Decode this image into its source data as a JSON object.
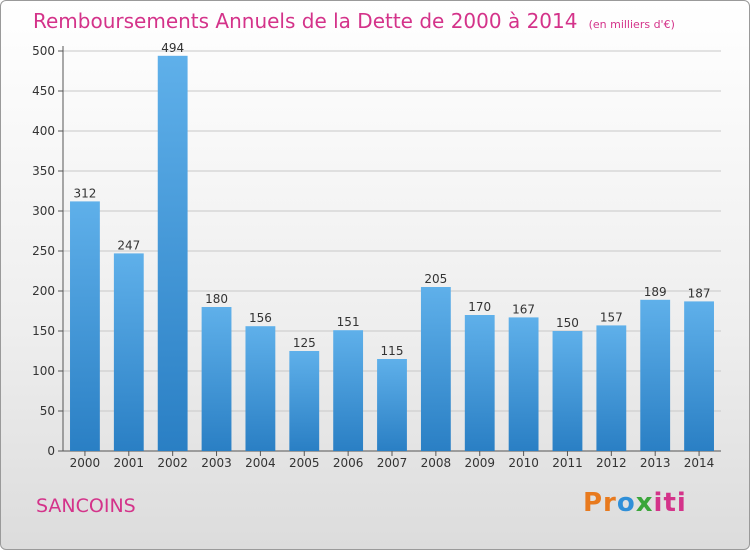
{
  "chart_data": {
    "type": "bar",
    "title": "Remboursements Annuels de la Dette de 2000 à 2014",
    "subtitle": "(en milliers d'€)",
    "categories": [
      "2000",
      "2001",
      "2002",
      "2003",
      "2004",
      "2005",
      "2006",
      "2007",
      "2008",
      "2009",
      "2010",
      "2011",
      "2012",
      "2013",
      "2014"
    ],
    "values": [
      312,
      247,
      494,
      180,
      156,
      125,
      151,
      115,
      205,
      170,
      167,
      150,
      157,
      189,
      187
    ],
    "ylim": [
      0,
      500
    ],
    "yticks": [
      0,
      50,
      100,
      150,
      200,
      250,
      300,
      350,
      400,
      450,
      500
    ],
    "xlabel": "",
    "ylabel": "",
    "grid": true
  },
  "footer": {
    "commune": "SANCOINS",
    "brand": "Proxiti"
  },
  "colors": {
    "accent": "#d4338a",
    "bar_top": "#5fb0ea",
    "bar_bottom": "#2a7fc4",
    "grid": "#c8c8c8"
  }
}
